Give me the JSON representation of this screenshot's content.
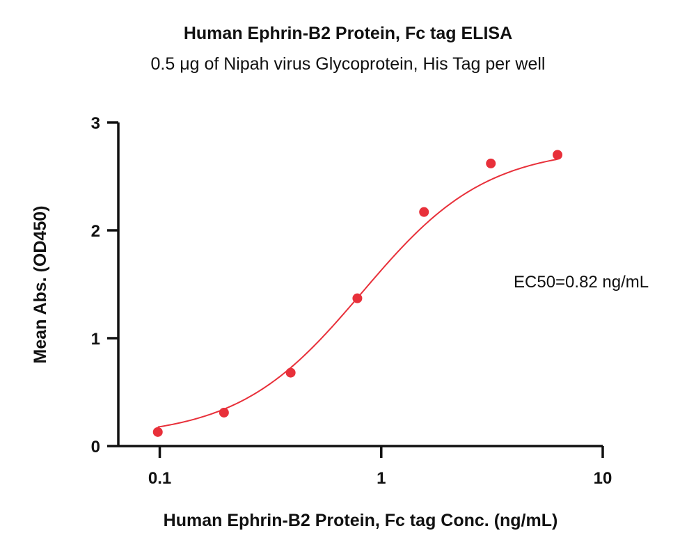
{
  "chart_data": {
    "type": "scatter",
    "title": "Human Ephrin-B2 Protein, Fc tag ELISA",
    "subtitle": "0.5 μg of Nipah virus Glycoprotein, His Tag per well",
    "xlabel": "Human Ephrin-B2 Protein, Fc tag Conc. (ng/mL)",
    "ylabel": "Mean Abs. (OD450)",
    "xscale": "log",
    "xlim": [
      0.065,
      10
    ],
    "ylim": [
      0,
      3
    ],
    "xticks": [
      0.1,
      1,
      10
    ],
    "xtick_labels": [
      "0.1",
      "1",
      "10"
    ],
    "yticks": [
      0,
      1,
      2,
      3
    ],
    "ytick_labels": [
      "0",
      "1",
      "2",
      "3"
    ],
    "series": [
      {
        "color": "#e8303a",
        "x": [
          0.098,
          0.195,
          0.39,
          0.78,
          1.56,
          3.125,
          6.25
        ],
        "y": [
          0.13,
          0.31,
          0.68,
          1.37,
          2.17,
          2.62,
          2.7
        ],
        "fit": {
          "model": "4PL",
          "bottom": 0.08,
          "top": 2.77,
          "ec50": 0.82,
          "hill": 1.55
        }
      }
    ],
    "annotations": [
      "EC50=0.82 ng/mL"
    ],
    "grid": false,
    "legend": "none"
  }
}
